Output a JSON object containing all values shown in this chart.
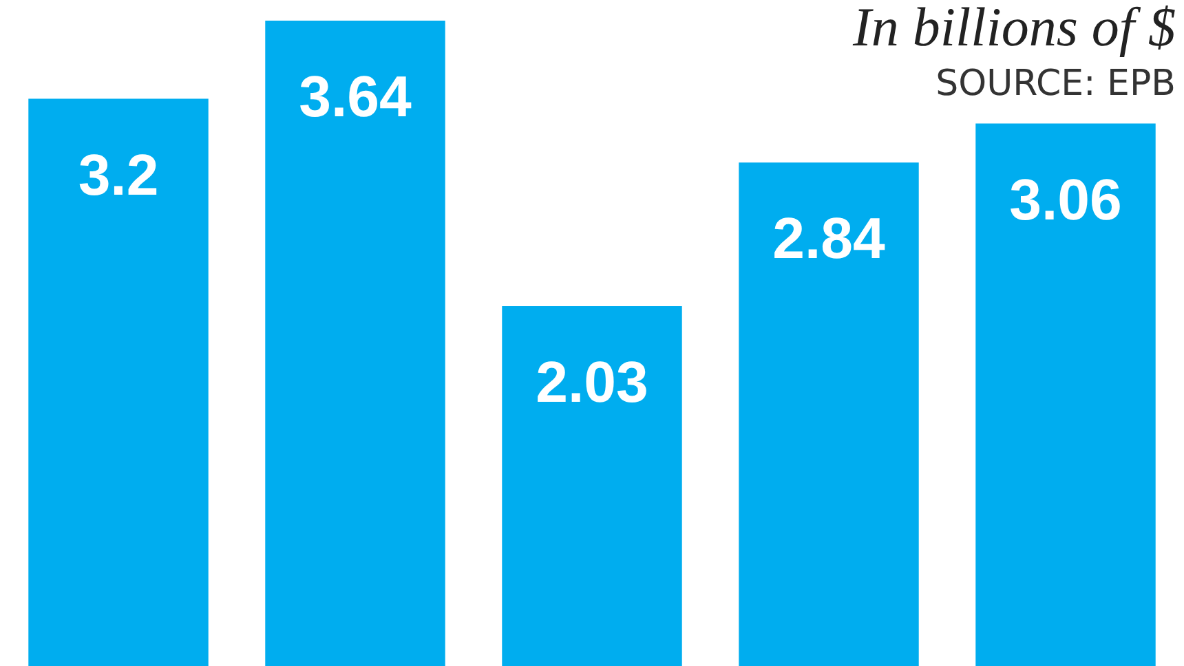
{
  "chart_data": {
    "type": "bar",
    "title": "In billions of $",
    "annotations": [
      "SOURCE: EPB"
    ],
    "categories": [
      null,
      null,
      null,
      null,
      null
    ],
    "values": [
      3.2,
      3.64,
      2.03,
      2.84,
      3.06
    ],
    "color": "#00adef",
    "data_labels": true,
    "legend": false
  }
}
